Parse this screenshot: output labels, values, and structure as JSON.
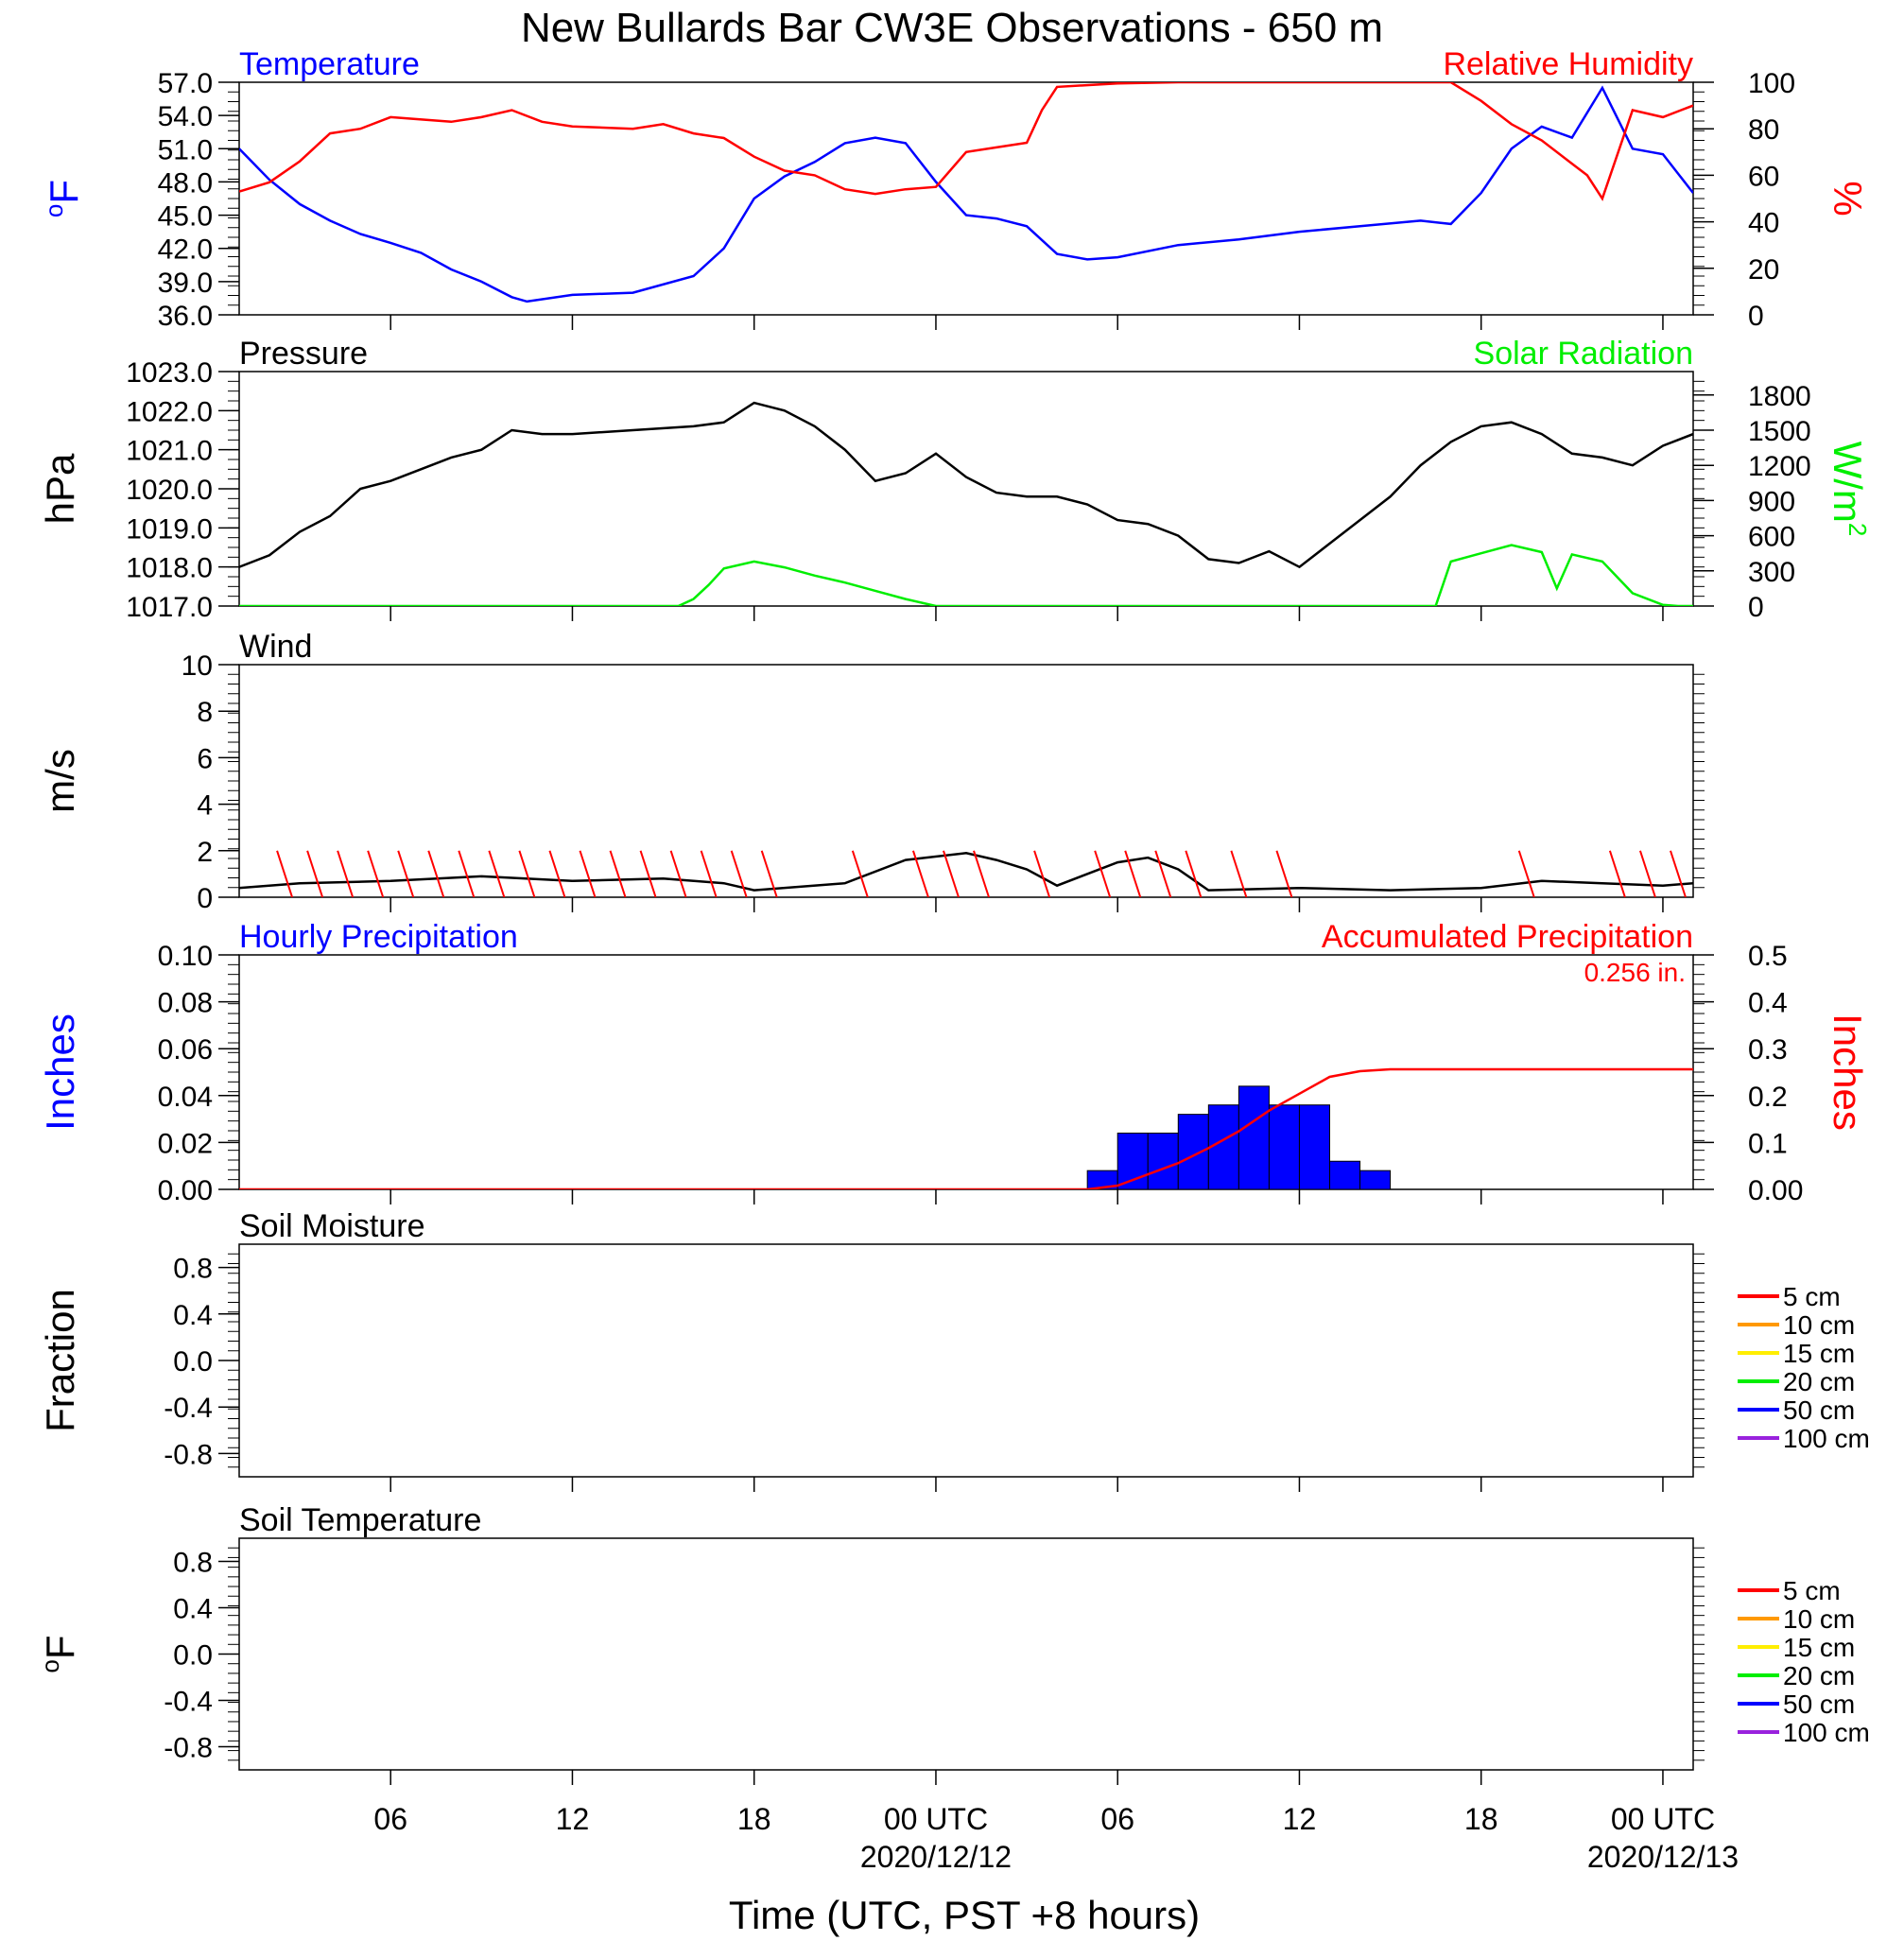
{
  "title": "New Bullards Bar CW3E Observations - 650 m",
  "x_axis": {
    "title": "Time (UTC, PST +8 hours)",
    "start": "2020-12-11T01:00Z",
    "end": "2020-12-13T01:00Z",
    "tick_labels": [
      {
        "time": "2020-12-11T06:00Z",
        "label": "06",
        "date": ""
      },
      {
        "time": "2020-12-11T12:00Z",
        "label": "12",
        "date": ""
      },
      {
        "time": "2020-12-11T18:00Z",
        "label": "18",
        "date": ""
      },
      {
        "time": "2020-12-12T00:00Z",
        "label": "00 UTC",
        "date": "2020/12/12"
      },
      {
        "time": "2020-12-12T06:00Z",
        "label": "06",
        "date": ""
      },
      {
        "time": "2020-12-12T12:00Z",
        "label": "12",
        "date": ""
      },
      {
        "time": "2020-12-12T18:00Z",
        "label": "18",
        "date": ""
      },
      {
        "time": "2020-12-13T00:00Z",
        "label": "00 UTC",
        "date": "2020/12/13"
      }
    ]
  },
  "chart_data": [
    {
      "type": "line",
      "title_left": "Temperature",
      "title_right": "Relative Humidity",
      "ylabel_left": "oF",
      "ylabel_right": "%",
      "ylim_left": [
        36,
        57
      ],
      "yticks_left": [
        "57.0",
        "54.0",
        "51.0",
        "48.0",
        "45.0",
        "42.0",
        "39.0",
        "36.0"
      ],
      "ylim_right": [
        0,
        100
      ],
      "yticks_right": [
        "100",
        "80",
        "60",
        "40",
        "20",
        "0"
      ],
      "series": [
        {
          "name": "Temperature",
          "color": "#0000ff",
          "axis": "left",
          "x": [
            "2020-12-11T01:00Z",
            "2020-12-11T02:00Z",
            "2020-12-11T03:00Z",
            "2020-12-11T04:00Z",
            "2020-12-11T05:00Z",
            "2020-12-11T06:00Z",
            "2020-12-11T07:00Z",
            "2020-12-11T08:00Z",
            "2020-12-11T09:00Z",
            "2020-12-11T10:00Z",
            "2020-12-11T10:30Z",
            "2020-12-11T12:00Z",
            "2020-12-11T14:00Z",
            "2020-12-11T16:00Z",
            "2020-12-11T17:00Z",
            "2020-12-11T18:00Z",
            "2020-12-11T19:00Z",
            "2020-12-11T20:00Z",
            "2020-12-11T21:00Z",
            "2020-12-11T22:00Z",
            "2020-12-11T23:00Z",
            "2020-12-12T00:00Z",
            "2020-12-12T01:00Z",
            "2020-12-12T02:00Z",
            "2020-12-12T03:00Z",
            "2020-12-12T04:00Z",
            "2020-12-12T05:00Z",
            "2020-12-12T06:00Z",
            "2020-12-12T08:00Z",
            "2020-12-12T10:00Z",
            "2020-12-12T12:00Z",
            "2020-12-12T14:00Z",
            "2020-12-12T16:00Z",
            "2020-12-12T17:00Z",
            "2020-12-12T18:00Z",
            "2020-12-12T19:00Z",
            "2020-12-12T20:00Z",
            "2020-12-12T21:00Z",
            "2020-12-12T22:00Z",
            "2020-12-12T23:00Z",
            "2020-12-13T00:00Z",
            "2020-12-13T01:00Z"
          ],
          "values": [
            51.0,
            48.2,
            46.0,
            44.5,
            43.3,
            42.5,
            41.6,
            40.1,
            39.0,
            37.6,
            37.2,
            37.8,
            38.0,
            39.5,
            42.0,
            46.5,
            48.5,
            49.8,
            51.5,
            52.0,
            51.5,
            48.0,
            45.0,
            44.7,
            44.0,
            41.5,
            41.0,
            41.2,
            42.3,
            42.8,
            43.5,
            44.0,
            44.5,
            44.2,
            47.0,
            51.0,
            53.0,
            52.0,
            56.5,
            51.0,
            50.5,
            47.0
          ]
        },
        {
          "name": "Relative Humidity",
          "color": "#ff0000",
          "axis": "right",
          "x": [
            "2020-12-11T01:00Z",
            "2020-12-11T02:00Z",
            "2020-12-11T03:00Z",
            "2020-12-11T04:00Z",
            "2020-12-11T05:00Z",
            "2020-12-11T06:00Z",
            "2020-12-11T08:00Z",
            "2020-12-11T09:00Z",
            "2020-12-11T10:00Z",
            "2020-12-11T11:00Z",
            "2020-12-11T12:00Z",
            "2020-12-11T14:00Z",
            "2020-12-11T15:00Z",
            "2020-12-11T16:00Z",
            "2020-12-11T17:00Z",
            "2020-12-11T18:00Z",
            "2020-12-11T19:00Z",
            "2020-12-11T20:00Z",
            "2020-12-11T21:00Z",
            "2020-12-11T22:00Z",
            "2020-12-11T23:00Z",
            "2020-12-12T00:00Z",
            "2020-12-12T01:00Z",
            "2020-12-12T02:00Z",
            "2020-12-12T03:00Z",
            "2020-12-12T03:30Z",
            "2020-12-12T04:00Z",
            "2020-12-12T06:00Z",
            "2020-12-12T08:00Z",
            "2020-12-12T17:00Z",
            "2020-12-12T18:00Z",
            "2020-12-12T19:00Z",
            "2020-12-12T20:00Z",
            "2020-12-12T21:00Z",
            "2020-12-12T21:30Z",
            "2020-12-12T22:00Z",
            "2020-12-12T23:00Z",
            "2020-12-13T00:00Z",
            "2020-12-13T01:00Z"
          ],
          "values": [
            53,
            57,
            66,
            78,
            80,
            85,
            83,
            85,
            88,
            83,
            81,
            80,
            82,
            78,
            76,
            68,
            62,
            60,
            54,
            52,
            54,
            55,
            70,
            72,
            74,
            88,
            98,
            99.5,
            100,
            100,
            92,
            82,
            75,
            65,
            60,
            50,
            88,
            85,
            90
          ]
        }
      ]
    },
    {
      "type": "line",
      "title_left": "Pressure",
      "title_right": "Solar Radiation",
      "ylabel_left": "hPa",
      "ylabel_right": "W/m2",
      "ylim_left": [
        1017,
        1023
      ],
      "yticks_left": [
        "1023.0",
        "1022.0",
        "1021.0",
        "1020.0",
        "1019.0",
        "1018.0",
        "1017.0"
      ],
      "ylim_right": [
        0,
        2000
      ],
      "yticks_right": [
        "1800",
        "1500",
        "1200",
        "900",
        "600",
        "300",
        "0"
      ],
      "series": [
        {
          "name": "Pressure",
          "color": "#000000",
          "axis": "left",
          "x": [
            "2020-12-11T01:00Z",
            "2020-12-11T02:00Z",
            "2020-12-11T03:00Z",
            "2020-12-11T04:00Z",
            "2020-12-11T05:00Z",
            "2020-12-11T06:00Z",
            "2020-12-11T07:00Z",
            "2020-12-11T08:00Z",
            "2020-12-11T09:00Z",
            "2020-12-11T10:00Z",
            "2020-12-11T11:00Z",
            "2020-12-11T12:00Z",
            "2020-12-11T14:00Z",
            "2020-12-11T16:00Z",
            "2020-12-11T17:00Z",
            "2020-12-11T18:00Z",
            "2020-12-11T19:00Z",
            "2020-12-11T20:00Z",
            "2020-12-11T21:00Z",
            "2020-12-11T22:00Z",
            "2020-12-11T23:00Z",
            "2020-12-12T00:00Z",
            "2020-12-12T01:00Z",
            "2020-12-12T02:00Z",
            "2020-12-12T03:00Z",
            "2020-12-12T04:00Z",
            "2020-12-12T05:00Z",
            "2020-12-12T06:00Z",
            "2020-12-12T07:00Z",
            "2020-12-12T08:00Z",
            "2020-12-12T09:00Z",
            "2020-12-12T10:00Z",
            "2020-12-12T11:00Z",
            "2020-12-12T12:00Z",
            "2020-12-12T13:00Z",
            "2020-12-12T14:00Z",
            "2020-12-12T15:00Z",
            "2020-12-12T16:00Z",
            "2020-12-12T17:00Z",
            "2020-12-12T18:00Z",
            "2020-12-12T19:00Z",
            "2020-12-12T20:00Z",
            "2020-12-12T21:00Z",
            "2020-12-12T22:00Z",
            "2020-12-12T23:00Z",
            "2020-12-13T00:00Z",
            "2020-12-13T01:00Z"
          ],
          "values": [
            1018.0,
            1018.3,
            1018.9,
            1019.3,
            1020.0,
            1020.2,
            1020.5,
            1020.8,
            1021.0,
            1021.5,
            1021.4,
            1021.4,
            1021.5,
            1021.6,
            1021.7,
            1022.2,
            1022.0,
            1021.6,
            1021.0,
            1020.2,
            1020.4,
            1020.9,
            1020.3,
            1019.9,
            1019.8,
            1019.8,
            1019.6,
            1019.2,
            1019.1,
            1018.8,
            1018.2,
            1018.1,
            1018.4,
            1018.0,
            1018.6,
            1019.2,
            1019.8,
            1020.6,
            1021.2,
            1021.6,
            1021.7,
            1021.4,
            1020.9,
            1020.8,
            1020.6,
            1021.1,
            1021.4
          ]
        },
        {
          "name": "Solar Radiation",
          "color": "#00ee00",
          "axis": "right",
          "x": [
            "2020-12-11T01:00Z",
            "2020-12-11T15:30Z",
            "2020-12-11T16:00Z",
            "2020-12-11T16:30Z",
            "2020-12-11T17:00Z",
            "2020-12-11T18:00Z",
            "2020-12-11T19:00Z",
            "2020-12-11T20:00Z",
            "2020-12-11T21:00Z",
            "2020-12-11T22:00Z",
            "2020-12-11T23:00Z",
            "2020-12-12T00:00Z",
            "2020-12-12T16:30Z",
            "2020-12-12T17:00Z",
            "2020-12-12T18:00Z",
            "2020-12-12T19:00Z",
            "2020-12-12T20:00Z",
            "2020-12-12T20:30Z",
            "2020-12-12T21:00Z",
            "2020-12-12T22:00Z",
            "2020-12-12T23:00Z",
            "2020-12-13T00:00Z",
            "2020-12-13T00:30Z",
            "2020-12-13T01:00Z"
          ],
          "values": [
            0,
            0,
            60,
            180,
            320,
            380,
            330,
            260,
            200,
            130,
            60,
            0,
            0,
            380,
            450,
            520,
            460,
            150,
            440,
            380,
            110,
            10,
            0,
            0
          ]
        }
      ]
    },
    {
      "type": "line",
      "title_left": "Wind",
      "ylabel_left": "m/s",
      "ylim_left": [
        0,
        10
      ],
      "yticks_left": [
        "10",
        "8",
        "6",
        "4",
        "2",
        "0"
      ],
      "series": [
        {
          "name": "Wind",
          "color": "#000000",
          "axis": "left",
          "x": [
            "2020-12-11T01:00Z",
            "2020-12-11T03:00Z",
            "2020-12-11T06:00Z",
            "2020-12-11T09:00Z",
            "2020-12-11T12:00Z",
            "2020-12-11T15:00Z",
            "2020-12-11T17:00Z",
            "2020-12-11T18:00Z",
            "2020-12-11T21:00Z",
            "2020-12-11T23:00Z",
            "2020-12-12T01:00Z",
            "2020-12-12T02:00Z",
            "2020-12-12T03:00Z",
            "2020-12-12T04:00Z",
            "2020-12-12T06:00Z",
            "2020-12-12T07:00Z",
            "2020-12-12T08:00Z",
            "2020-12-12T09:00Z",
            "2020-12-12T12:00Z",
            "2020-12-12T15:00Z",
            "2020-12-12T18:00Z",
            "2020-12-12T20:00Z",
            "2020-12-12T22:00Z",
            "2020-12-13T00:00Z",
            "2020-12-13T01:00Z"
          ],
          "values": [
            0.4,
            0.6,
            0.7,
            0.9,
            0.7,
            0.8,
            0.6,
            0.3,
            0.6,
            1.6,
            1.9,
            1.6,
            1.2,
            0.5,
            1.5,
            1.7,
            1.2,
            0.3,
            0.4,
            0.3,
            0.4,
            0.7,
            0.6,
            0.5,
            0.6
          ]
        },
        {
          "name": "Wind Direction",
          "color": "#ff0000",
          "axis": "left",
          "x": [
            "2020-12-11T02:30Z",
            "2020-12-11T03:30Z",
            "2020-12-11T04:30Z",
            "2020-12-11T05:30Z",
            "2020-12-11T06:30Z",
            "2020-12-11T07:30Z",
            "2020-12-11T08:30Z",
            "2020-12-11T09:30Z",
            "2020-12-11T10:30Z",
            "2020-12-11T11:30Z",
            "2020-12-11T12:30Z",
            "2020-12-11T13:30Z",
            "2020-12-11T14:30Z",
            "2020-12-11T15:30Z",
            "2020-12-11T16:30Z",
            "2020-12-11T17:30Z",
            "2020-12-11T18:30Z",
            "2020-12-11T21:30Z",
            "2020-12-11T23:30Z",
            "2020-12-12T00:30Z",
            "2020-12-12T01:30Z",
            "2020-12-12T03:30Z",
            "2020-12-12T05:30Z",
            "2020-12-12T06:30Z",
            "2020-12-12T07:30Z",
            "2020-12-12T08:30Z",
            "2020-12-12T10:00Z",
            "2020-12-12T11:30Z",
            "2020-12-12T19:30Z",
            "2020-12-12T22:30Z",
            "2020-12-12T23:30Z",
            "2020-12-13T00:30Z"
          ],
          "values": [
            2.0,
            2.0,
            2.0,
            2.0,
            2.0,
            2.0,
            2.0,
            2.0,
            2.0,
            2.0,
            2.0,
            2.0,
            2.0,
            2.0,
            2.0,
            2.0,
            2.0,
            2.0,
            2.0,
            2.0,
            2.0,
            2.0,
            2.0,
            2.0,
            2.0,
            2.0,
            2.0,
            2.0,
            2.0,
            2.0,
            2.0,
            2.0
          ]
        }
      ]
    },
    {
      "type": "bar",
      "title_left": "Hourly Precipitation",
      "title_right": "Accumulated Precipitation",
      "annotation": "0.256 in.",
      "ylabel_left": "Inches",
      "ylabel_right": "Inches",
      "ylim_left": [
        0,
        0.1
      ],
      "yticks_left": [
        "0.10",
        "0.08",
        "0.06",
        "0.04",
        "0.02",
        "0.00"
      ],
      "ylim_right": [
        0,
        0.5
      ],
      "yticks_right": [
        "0.5",
        "0.4",
        "0.3",
        "0.2",
        "0.1",
        "0.00"
      ],
      "series": [
        {
          "name": "Hourly Precipitation",
          "color": "#0000ff",
          "axis": "left",
          "x": [
            "2020-12-12T05:00Z",
            "2020-12-12T06:00Z",
            "2020-12-12T07:00Z",
            "2020-12-12T08:00Z",
            "2020-12-12T09:00Z",
            "2020-12-12T10:00Z",
            "2020-12-12T11:00Z",
            "2020-12-12T12:00Z",
            "2020-12-12T13:00Z",
            "2020-12-12T14:00Z"
          ],
          "values": [
            0.008,
            0.024,
            0.024,
            0.032,
            0.036,
            0.044,
            0.036,
            0.036,
            0.012,
            0.008
          ]
        },
        {
          "name": "Accumulated Precipitation",
          "color": "#ff0000",
          "axis": "right",
          "x": [
            "2020-12-11T01:00Z",
            "2020-12-12T05:00Z",
            "2020-12-12T06:00Z",
            "2020-12-12T07:00Z",
            "2020-12-12T08:00Z",
            "2020-12-12T09:00Z",
            "2020-12-12T10:00Z",
            "2020-12-12T11:00Z",
            "2020-12-12T12:00Z",
            "2020-12-12T13:00Z",
            "2020-12-12T14:00Z",
            "2020-12-12T15:00Z",
            "2020-12-13T01:00Z"
          ],
          "values": [
            0,
            0,
            0.008,
            0.032,
            0.056,
            0.088,
            0.124,
            0.168,
            0.204,
            0.24,
            0.252,
            0.256,
            0.256
          ]
        }
      ]
    },
    {
      "type": "line",
      "title_left": "Soil Moisture",
      "ylabel_left": "Fraction",
      "ylim_left": [
        -1,
        1
      ],
      "yticks_left": [
        "0.8",
        "0.4",
        "0.0",
        "-0.4",
        "-0.8"
      ],
      "legend": [
        {
          "label": "5 cm",
          "color": "#ff0000"
        },
        {
          "label": "10 cm",
          "color": "#ff9900"
        },
        {
          "label": "15 cm",
          "color": "#ffee00"
        },
        {
          "label": "20 cm",
          "color": "#00ee00"
        },
        {
          "label": "50 cm",
          "color": "#0000ff"
        },
        {
          "label": "100 cm",
          "color": "#9922dd"
        }
      ],
      "series": []
    },
    {
      "type": "line",
      "title_left": "Soil Temperature",
      "ylabel_left": "oF",
      "ylim_left": [
        -1,
        1
      ],
      "yticks_left": [
        "0.8",
        "0.4",
        "0.0",
        "-0.4",
        "-0.8"
      ],
      "legend": [
        {
          "label": "5 cm",
          "color": "#ff0000"
        },
        {
          "label": "10 cm",
          "color": "#ff9900"
        },
        {
          "label": "15 cm",
          "color": "#ffee00"
        },
        {
          "label": "20 cm",
          "color": "#00ee00"
        },
        {
          "label": "50 cm",
          "color": "#0000ff"
        },
        {
          "label": "100 cm",
          "color": "#9922dd"
        }
      ],
      "series": []
    }
  ]
}
